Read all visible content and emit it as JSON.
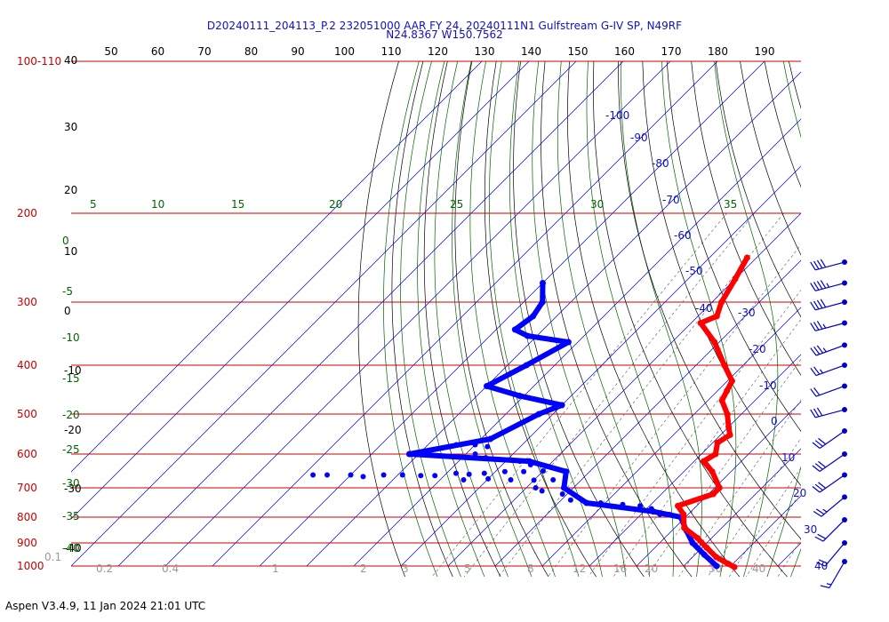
{
  "header": {
    "line1": "D20240111_204113_P.2 232051000 AAR FY 24, 20240111N1 Gulfstream G-IV SP, N49RF",
    "line2": "N24.8367 W150.7562"
  },
  "footer": {
    "text": "Aspen V3.4.9, 11 Jan 2024  21:01 UTC"
  },
  "colors": {
    "temperature": "#ff0000",
    "dewpoint": "#0000ff",
    "isobar": "#cc0000",
    "isotherm": "#0000cc",
    "dry_adiabat": "#000000",
    "moist_adiabat": "#006400",
    "mixing_ratio": "#555555",
    "wind": "#0000cc"
  },
  "chart_data": {
    "type": "skew-t",
    "pressure_range_hPa": [
      100,
      1000
    ],
    "pressure_axis": {
      "scale": "log",
      "labels": [
        {
          "p": 100,
          "text": "100-110"
        },
        {
          "p": 200,
          "text": "200"
        },
        {
          "p": 300,
          "text": "300"
        },
        {
          "p": 400,
          "text": "400"
        },
        {
          "p": 500,
          "text": "500"
        },
        {
          "p": 600,
          "text": "600"
        },
        {
          "p": 700,
          "text": "700"
        },
        {
          "p": 800,
          "text": "800"
        },
        {
          "p": 900,
          "text": "900"
        },
        {
          "p": 1000,
          "text": "1000"
        }
      ],
      "isobars": [
        100,
        200,
        300,
        400,
        500,
        600,
        700,
        800,
        900,
        1000
      ]
    },
    "top_axis_labels": [
      "50",
      "60",
      "70",
      "80",
      "90",
      "100",
      "110",
      "120",
      "130",
      "140",
      "150",
      "160",
      "170",
      "180",
      "190"
    ],
    "isotherm_labels": [
      {
        "t": -100,
        "text": "-100"
      },
      {
        "t": -90,
        "text": "-90"
      },
      {
        "t": -80,
        "text": "-80"
      },
      {
        "t": -70,
        "text": "-70"
      },
      {
        "t": -60,
        "text": "-60"
      },
      {
        "t": -50,
        "text": "-50"
      },
      {
        "t": -40,
        "text": "-40"
      },
      {
        "t": -30,
        "text": "-30"
      },
      {
        "t": -20,
        "text": "-20"
      },
      {
        "t": -10,
        "text": "-10"
      },
      {
        "t": 0,
        "text": "0"
      },
      {
        "t": 10,
        "text": "10"
      },
      {
        "t": 20,
        "text": "20"
      },
      {
        "t": 30,
        "text": "30"
      },
      {
        "t": 40,
        "text": "40"
      }
    ],
    "dry_adiabat_labels": [
      "40",
      "30",
      "20",
      "10",
      "0",
      "-10",
      "-20",
      "-30",
      "-40"
    ],
    "moist_adiabat_labels_left": [
      "0",
      "-5",
      "-10",
      "-15",
      "-20",
      "-25",
      "-30",
      "-35",
      "-40"
    ],
    "moist_adiabat_labels_top": [
      "5",
      "10",
      "15",
      "20",
      "25",
      "30",
      "35"
    ],
    "mixing_ratio_labels": [
      "0.1",
      "0.2",
      "0.4",
      "1",
      "2",
      "3",
      "5",
      "8",
      "12",
      "16",
      "20",
      "30",
      "40"
    ],
    "temperature_profile": [
      {
        "p": 245,
        "t": -42
      },
      {
        "p": 270,
        "t": -40
      },
      {
        "p": 300,
        "t": -38
      },
      {
        "p": 320,
        "t": -36
      },
      {
        "p": 330,
        "t": -38
      },
      {
        "p": 360,
        "t": -31
      },
      {
        "p": 400,
        "t": -24
      },
      {
        "p": 430,
        "t": -19
      },
      {
        "p": 450,
        "t": -18
      },
      {
        "p": 470,
        "t": -17
      },
      {
        "p": 500,
        "t": -13
      },
      {
        "p": 530,
        "t": -10
      },
      {
        "p": 550,
        "t": -8
      },
      {
        "p": 570,
        "t": -9
      },
      {
        "p": 600,
        "t": -7
      },
      {
        "p": 620,
        "t": -8
      },
      {
        "p": 650,
        "t": -4
      },
      {
        "p": 700,
        "t": 1
      },
      {
        "p": 720,
        "t": 1
      },
      {
        "p": 760,
        "t": -4
      },
      {
        "p": 790,
        "t": -1
      },
      {
        "p": 840,
        "t": 2
      },
      {
        "p": 880,
        "t": 7
      },
      {
        "p": 920,
        "t": 11
      },
      {
        "p": 960,
        "t": 15
      },
      {
        "p": 990,
        "t": 19
      },
      {
        "p": 1005,
        "t": 21
      }
    ],
    "dewpoint_profile": [
      {
        "p": 275,
        "t": -80
      },
      {
        "p": 300,
        "t": -76
      },
      {
        "p": 320,
        "t": -75
      },
      {
        "p": 340,
        "t": -76
      },
      {
        "p": 350,
        "t": -72
      },
      {
        "p": 360,
        "t": -62
      },
      {
        "p": 400,
        "t": -66
      },
      {
        "p": 440,
        "t": -70
      },
      {
        "p": 460,
        "t": -61
      },
      {
        "p": 480,
        "t": -50
      },
      {
        "p": 500,
        "t": -53
      },
      {
        "p": 560,
        "t": -58
      },
      {
        "p": 600,
        "t": -72
      },
      {
        "p": 620,
        "t": -45
      },
      {
        "p": 650,
        "t": -35
      },
      {
        "p": 700,
        "t": -32
      },
      {
        "p": 750,
        "t": -24
      },
      {
        "p": 780,
        "t": -8
      },
      {
        "p": 800,
        "t": -1
      },
      {
        "p": 850,
        "t": 3
      },
      {
        "p": 900,
        "t": 7
      },
      {
        "p": 950,
        "t": 12
      },
      {
        "p": 1000,
        "t": 17
      }
    ],
    "dewpoint_scatter": [
      {
        "p": 660,
        "t": -88
      },
      {
        "p": 660,
        "t": -85
      },
      {
        "p": 660,
        "t": -80
      },
      {
        "p": 665,
        "t": -77
      },
      {
        "p": 660,
        "t": -73
      },
      {
        "p": 660,
        "t": -69
      },
      {
        "p": 662,
        "t": -65
      },
      {
        "p": 662,
        "t": -62
      },
      {
        "p": 655,
        "t": -58
      },
      {
        "p": 658,
        "t": -55
      },
      {
        "p": 655,
        "t": -52
      },
      {
        "p": 650,
        "t": -48
      },
      {
        "p": 650,
        "t": -44
      },
      {
        "p": 648,
        "t": -40
      },
      {
        "p": 675,
        "t": -55
      },
      {
        "p": 672,
        "t": -50
      },
      {
        "p": 675,
        "t": -45
      },
      {
        "p": 676,
        "t": -40
      },
      {
        "p": 675,
        "t": -36
      },
      {
        "p": 575,
        "t": -64
      },
      {
        "p": 575,
        "t": -60
      },
      {
        "p": 580,
        "t": -57
      },
      {
        "p": 600,
        "t": -58
      },
      {
        "p": 610,
        "t": -55
      },
      {
        "p": 620,
        "t": -47
      },
      {
        "p": 630,
        "t": -44
      },
      {
        "p": 700,
        "t": -38
      },
      {
        "p": 710,
        "t": -36
      },
      {
        "p": 720,
        "t": -31
      },
      {
        "p": 740,
        "t": -28
      },
      {
        "p": 750,
        "t": -21
      },
      {
        "p": 755,
        "t": -16
      },
      {
        "p": 760,
        "t": -12
      },
      {
        "p": 770,
        "t": -9
      },
      {
        "p": 790,
        "t": -6
      },
      {
        "p": 790,
        "t": -4
      }
    ],
    "wind_barbs": [
      {
        "p": 250,
        "dir_deg": 255,
        "speed_kt": 40
      },
      {
        "p": 275,
        "dir_deg": 255,
        "speed_kt": 45
      },
      {
        "p": 300,
        "dir_deg": 255,
        "speed_kt": 40
      },
      {
        "p": 330,
        "dir_deg": 255,
        "speed_kt": 35
      },
      {
        "p": 365,
        "dir_deg": 250,
        "speed_kt": 35
      },
      {
        "p": 400,
        "dir_deg": 250,
        "speed_kt": 25
      },
      {
        "p": 440,
        "dir_deg": 250,
        "speed_kt": 20
      },
      {
        "p": 490,
        "dir_deg": 255,
        "speed_kt": 30
      },
      {
        "p": 540,
        "dir_deg": 235,
        "speed_kt": 30
      },
      {
        "p": 600,
        "dir_deg": 235,
        "speed_kt": 30
      },
      {
        "p": 660,
        "dir_deg": 235,
        "speed_kt": 30
      },
      {
        "p": 730,
        "dir_deg": 230,
        "speed_kt": 25
      },
      {
        "p": 810,
        "dir_deg": 225,
        "speed_kt": 20
      },
      {
        "p": 900,
        "dir_deg": 220,
        "speed_kt": 20
      },
      {
        "p": 980,
        "dir_deg": 210,
        "speed_kt": 15
      }
    ]
  }
}
